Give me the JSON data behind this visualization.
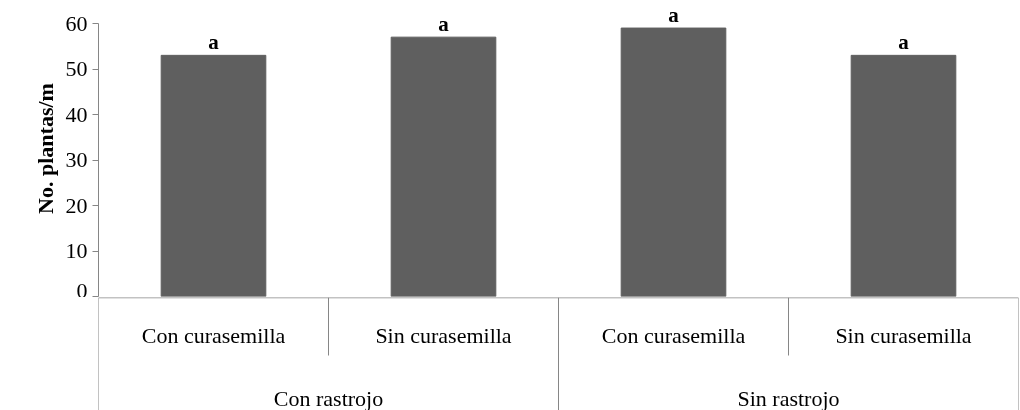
{
  "chart_data": {
    "type": "bar",
    "ylabel": "No. plantas/m",
    "categories": [
      "Con curasemilla",
      "Sin curasemilla",
      "Con curasemilla",
      "Sin curasemilla"
    ],
    "values": [
      53,
      57,
      59,
      53
    ],
    "value_labels": [
      "a",
      "a",
      "a",
      "a"
    ],
    "color": "#5f5f5f",
    "ylim": [
      0,
      60
    ],
    "yticks": [
      0,
      10,
      20,
      30,
      40,
      50,
      60
    ],
    "grid": false,
    "annotations": [
      "Con rastrojo",
      "Sin rastrojo"
    ]
  }
}
